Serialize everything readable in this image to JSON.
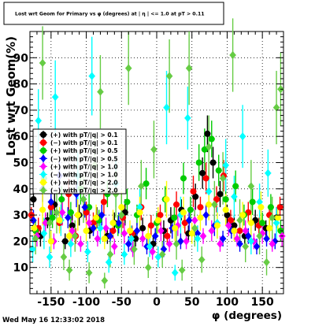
{
  "chart_data": {
    "type": "scatter",
    "title": "Lost wrt Geom for Primary vs φ (degrees) at | η | <= 1.0 at pT > 0.11",
    "xlabel": "φ (degrees)",
    "ylabel": "Lost wrt Geom(%)",
    "xlim": [
      -180,
      180
    ],
    "ylim": [
      0,
      100
    ],
    "x_ticks": [
      "-150",
      "-100",
      "-50",
      "0",
      "50",
      "100",
      "150"
    ],
    "y_ticks": [
      "10",
      "20",
      "30",
      "40",
      "50",
      "60",
      "70",
      "80",
      "90"
    ],
    "grid": true,
    "legend_position": "left-middle",
    "series": [
      {
        "name": "(+) with pT/|q| > 0.1",
        "color": "#000000",
        "marker": "circle",
        "points": [
          [
            -175,
            36,
            3
          ],
          [
            -165,
            22,
            4
          ],
          [
            -155,
            28,
            3
          ],
          [
            -145,
            34,
            4
          ],
          [
            -130,
            20,
            3
          ],
          [
            -120,
            26,
            5
          ],
          [
            -110,
            30,
            4
          ],
          [
            -95,
            24,
            3
          ],
          [
            -85,
            29,
            4
          ],
          [
            -70,
            22,
            3
          ],
          [
            -60,
            27,
            4
          ],
          [
            -45,
            31,
            5
          ],
          [
            -30,
            21,
            3
          ],
          [
            -20,
            25,
            4
          ],
          [
            -5,
            19,
            3
          ],
          [
            10,
            24,
            4
          ],
          [
            20,
            28,
            5
          ],
          [
            35,
            32,
            4
          ],
          [
            45,
            23,
            3
          ],
          [
            55,
            37,
            5
          ],
          [
            65,
            46,
            6
          ],
          [
            72,
            61,
            7
          ],
          [
            80,
            50,
            6
          ],
          [
            90,
            38,
            5
          ],
          [
            100,
            30,
            4
          ],
          [
            110,
            26,
            4
          ],
          [
            125,
            22,
            3
          ],
          [
            140,
            28,
            4
          ],
          [
            155,
            25,
            3
          ],
          [
            170,
            29,
            4
          ]
        ]
      },
      {
        "name": "(−) with pT/|q| > 0.1",
        "color": "#ff0000",
        "marker": "circle",
        "points": [
          [
            -178,
            30,
            3
          ],
          [
            -168,
            25,
            4
          ],
          [
            -150,
            33,
            4
          ],
          [
            -138,
            27,
            3
          ],
          [
            -125,
            38,
            6
          ],
          [
            -115,
            22,
            3
          ],
          [
            -100,
            31,
            4
          ],
          [
            -90,
            27,
            4
          ],
          [
            -75,
            35,
            5
          ],
          [
            -62,
            24,
            3
          ],
          [
            -48,
            29,
            4
          ],
          [
            -35,
            23,
            3
          ],
          [
            -22,
            33,
            5
          ],
          [
            -8,
            26,
            4
          ],
          [
            5,
            30,
            4
          ],
          [
            15,
            22,
            3
          ],
          [
            28,
            34,
            5
          ],
          [
            40,
            27,
            4
          ],
          [
            52,
            39,
            6
          ],
          [
            62,
            33,
            4
          ],
          [
            70,
            44,
            6
          ],
          [
            85,
            36,
            5
          ],
          [
            95,
            45,
            6
          ],
          [
            105,
            28,
            4
          ],
          [
            118,
            24,
            3
          ],
          [
            130,
            31,
            4
          ],
          [
            145,
            26,
            3
          ],
          [
            160,
            30,
            4
          ],
          [
            175,
            33,
            4
          ]
        ]
      },
      {
        "name": "(+) with pT/|q| > 0.5",
        "color": "#00cc00",
        "marker": "circle",
        "points": [
          [
            -172,
            24,
            4
          ],
          [
            -160,
            44,
            6
          ],
          [
            -148,
            29,
            4
          ],
          [
            -135,
            36,
            5
          ],
          [
            -122,
            31,
            4
          ],
          [
            -108,
            40,
            6
          ],
          [
            -96,
            33,
            5
          ],
          [
            -82,
            28,
            4
          ],
          [
            -70,
            38,
            5
          ],
          [
            -55,
            26,
            4
          ],
          [
            -42,
            35,
            5
          ],
          [
            -28,
            30,
            4
          ],
          [
            -15,
            42,
            6
          ],
          [
            0,
            27,
            4
          ],
          [
            12,
            36,
            5
          ],
          [
            25,
            29,
            4
          ],
          [
            38,
            44,
            6
          ],
          [
            48,
            32,
            5
          ],
          [
            60,
            50,
            7
          ],
          [
            68,
            55,
            8
          ],
          [
            78,
            59,
            7
          ],
          [
            88,
            47,
            6
          ],
          [
            98,
            36,
            5
          ],
          [
            112,
            41,
            6
          ],
          [
            124,
            30,
            4
          ],
          [
            136,
            35,
            5
          ],
          [
            150,
            27,
            4
          ],
          [
            162,
            33,
            5
          ],
          [
            176,
            24,
            4
          ]
        ]
      },
      {
        "name": "(−) with pT/|q| > 0.5",
        "color": "#0000ff",
        "marker": "diamond",
        "points": [
          [
            -175,
            28,
            4
          ],
          [
            -162,
            40,
            5
          ],
          [
            -150,
            35,
            5
          ],
          [
            -138,
            45,
            6
          ],
          [
            -126,
            29,
            4
          ],
          [
            -114,
            38,
            5
          ],
          [
            -102,
            33,
            4
          ],
          [
            -90,
            25,
            3
          ],
          [
            -78,
            30,
            4
          ],
          [
            -66,
            22,
            3
          ],
          [
            -54,
            27,
            4
          ],
          [
            -40,
            19,
            3
          ],
          [
            -28,
            24,
            3
          ],
          [
            -14,
            18,
            3
          ],
          [
            -2,
            22,
            3
          ],
          [
            10,
            17,
            3
          ],
          [
            22,
            25,
            4
          ],
          [
            34,
            20,
            3
          ],
          [
            46,
            28,
            4
          ],
          [
            58,
            23,
            3
          ],
          [
            70,
            30,
            4
          ],
          [
            82,
            26,
            4
          ],
          [
            94,
            21,
            3
          ],
          [
            106,
            24,
            3
          ],
          [
            118,
            19,
            3
          ],
          [
            130,
            22,
            3
          ],
          [
            142,
            18,
            3
          ],
          [
            156,
            21,
            3
          ],
          [
            168,
            20,
            3
          ]
        ]
      },
      {
        "name": "(+) with pT/|q| > 1.0",
        "color": "#ff00ff",
        "marker": "diamond",
        "points": [
          [
            -170,
            22,
            4
          ],
          [
            -158,
            27,
            4
          ],
          [
            -146,
            20,
            3
          ],
          [
            -134,
            31,
            5
          ],
          [
            -120,
            24,
            4
          ],
          [
            -108,
            19,
            3
          ],
          [
            -96,
            27,
            4
          ],
          [
            -84,
            21,
            3
          ],
          [
            -72,
            25,
            4
          ],
          [
            -60,
            18,
            3
          ],
          [
            -46,
            23,
            4
          ],
          [
            -34,
            17,
            3
          ],
          [
            -20,
            21,
            3
          ],
          [
            -6,
            16,
            3
          ],
          [
            6,
            24,
            4
          ],
          [
            18,
            19,
            3
          ],
          [
            30,
            26,
            4
          ],
          [
            42,
            20,
            3
          ],
          [
            54,
            28,
            5
          ],
          [
            66,
            22,
            3
          ],
          [
            78,
            24,
            4
          ],
          [
            90,
            19,
            3
          ],
          [
            102,
            26,
            4
          ],
          [
            114,
            21,
            3
          ],
          [
            126,
            24,
            4
          ],
          [
            138,
            20,
            3
          ],
          [
            150,
            23,
            4
          ],
          [
            164,
            19,
            3
          ],
          [
            178,
            22,
            4
          ]
        ]
      },
      {
        "name": "(−) with pT/|q| > 1.0",
        "color": "#00ffff",
        "marker": "diamond",
        "points": [
          [
            -176,
            17,
            5
          ],
          [
            -168,
            66,
            12
          ],
          [
            -160,
            23,
            6
          ],
          [
            -152,
            14,
            4
          ],
          [
            -144,
            75,
            14
          ],
          [
            -136,
            28,
            6
          ],
          [
            -122,
            19,
            5
          ],
          [
            -112,
            45,
            9
          ],
          [
            -98,
            16,
            4
          ],
          [
            -92,
            83,
            15
          ],
          [
            -80,
            25,
            6
          ],
          [
            -68,
            12,
            4
          ],
          [
            -58,
            42,
            9
          ],
          [
            -46,
            15,
            4
          ],
          [
            -36,
            21,
            5
          ],
          [
            -24,
            33,
            7
          ],
          [
            -10,
            18,
            4
          ],
          [
            2,
            14,
            4
          ],
          [
            14,
            71,
            14
          ],
          [
            26,
            8,
            3
          ],
          [
            34,
            30,
            7
          ],
          [
            44,
            67,
            12
          ],
          [
            58,
            21,
            5
          ],
          [
            74,
            39,
            8
          ],
          [
            86,
            27,
            6
          ],
          [
            98,
            49,
            10
          ],
          [
            110,
            37,
            8
          ],
          [
            122,
            60,
            12
          ],
          [
            134,
            20,
            5
          ],
          [
            146,
            35,
            7
          ],
          [
            158,
            46,
            9
          ],
          [
            170,
            27,
            6
          ]
        ]
      },
      {
        "name": "(+) with pT/|q| > 2.0",
        "color": "#ffff00",
        "marker": "circle",
        "points": [
          [
            -174,
            25,
            5
          ],
          [
            -162,
            32,
            6
          ],
          [
            -150,
            20,
            4
          ],
          [
            -138,
            28,
            5
          ],
          [
            -124,
            22,
            4
          ],
          [
            -112,
            30,
            6
          ],
          [
            -100,
            24,
            4
          ],
          [
            -86,
            29,
            5
          ],
          [
            -74,
            21,
            4
          ],
          [
            -62,
            27,
            5
          ],
          [
            -50,
            33,
            6
          ],
          [
            -38,
            24,
            4
          ],
          [
            -24,
            31,
            6
          ],
          [
            -12,
            22,
            4
          ],
          [
            2,
            28,
            5
          ],
          [
            14,
            36,
            7
          ],
          [
            26,
            25,
            5
          ],
          [
            38,
            31,
            6
          ],
          [
            50,
            23,
            4
          ],
          [
            62,
            29,
            5
          ],
          [
            74,
            34,
            6
          ],
          [
            86,
            26,
            5
          ],
          [
            98,
            32,
            6
          ],
          [
            110,
            24,
            4
          ],
          [
            122,
            30,
            5
          ],
          [
            134,
            27,
            5
          ],
          [
            148,
            33,
            6
          ],
          [
            160,
            25,
            4
          ],
          [
            172,
            29,
            5
          ]
        ]
      },
      {
        "name": "(−) with pT/|q| > 2.0",
        "color": "#66cc44",
        "marker": "diamond",
        "points": [
          [
            -172,
            21,
            6
          ],
          [
            -162,
            88,
            14
          ],
          [
            -152,
            27,
            8
          ],
          [
            -142,
            31,
            8
          ],
          [
            -132,
            14,
            5
          ],
          [
            -124,
            9,
            4
          ],
          [
            -116,
            22,
            6
          ],
          [
            -104,
            36,
            9
          ],
          [
            -96,
            8,
            4
          ],
          [
            -88,
            49,
            11
          ],
          [
            -80,
            77,
            14
          ],
          [
            -74,
            5,
            3
          ],
          [
            -66,
            15,
            5
          ],
          [
            -58,
            38,
            9
          ],
          [
            -50,
            30,
            8
          ],
          [
            -40,
            86,
            14
          ],
          [
            -32,
            17,
            6
          ],
          [
            -22,
            41,
            10
          ],
          [
            -12,
            10,
            4
          ],
          [
            -4,
            55,
            11
          ],
          [
            8,
            15,
            5
          ],
          [
            18,
            83,
            14
          ],
          [
            28,
            19,
            6
          ],
          [
            36,
            9,
            4
          ],
          [
            46,
            86,
            14
          ],
          [
            54,
            25,
            7
          ],
          [
            64,
            13,
            5
          ],
          [
            74,
            56,
            12
          ],
          [
            82,
            34,
            9
          ],
          [
            94,
            44,
            10
          ],
          [
            108,
            91,
            14
          ],
          [
            118,
            28,
            8
          ],
          [
            126,
            18,
            6
          ],
          [
            134,
            41,
            10
          ],
          [
            146,
            22,
            7
          ],
          [
            156,
            12,
            5
          ],
          [
            164,
            29,
            8
          ],
          [
            170,
            71,
            14
          ],
          [
            176,
            78,
            14
          ]
        ]
      }
    ]
  },
  "footer": {
    "timestamp": "Wed May 16 12:33:02 2018"
  }
}
